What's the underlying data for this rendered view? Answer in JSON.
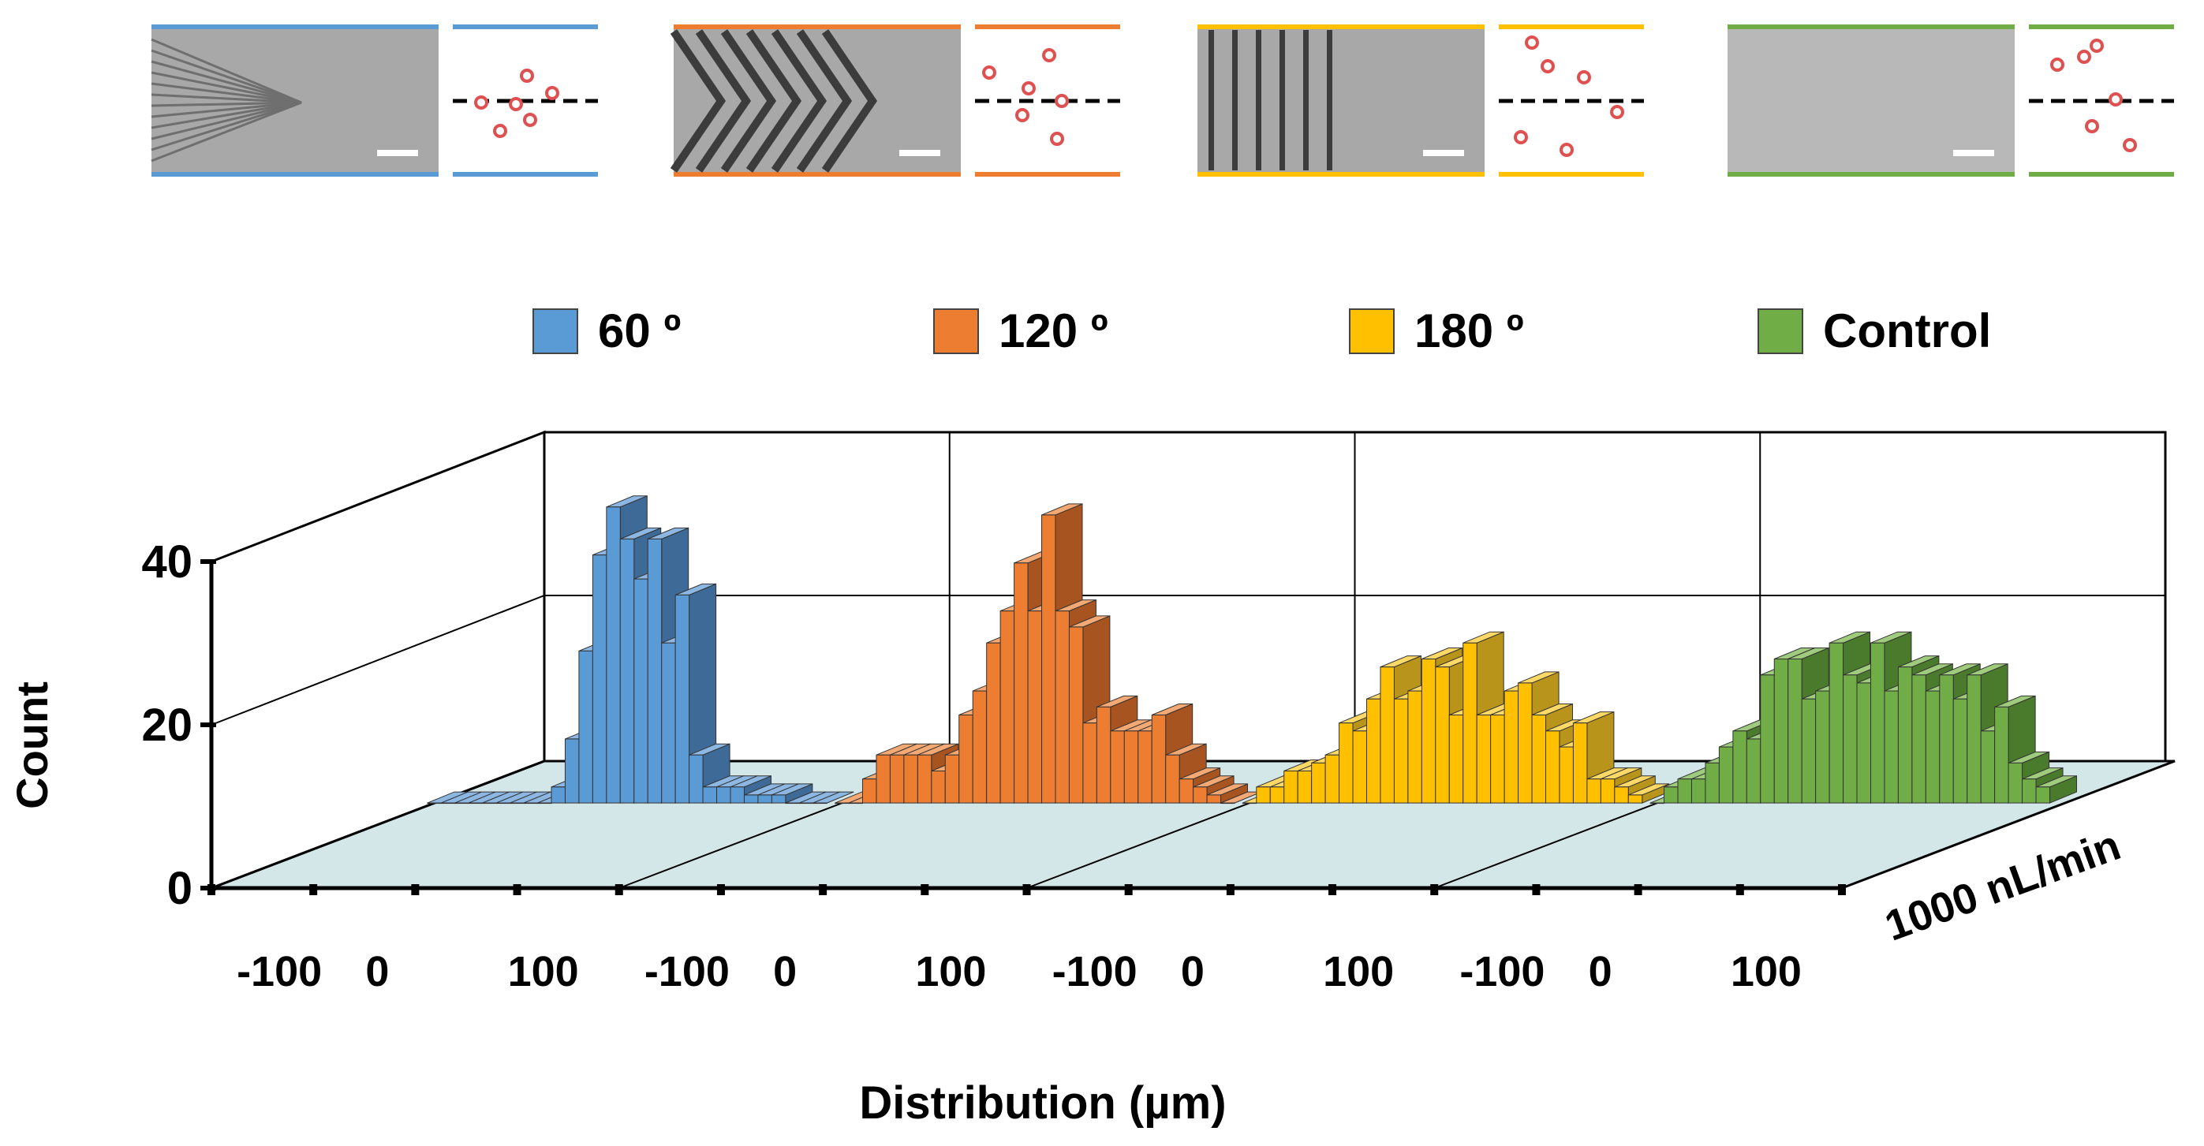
{
  "chart_data": {
    "type": "bar",
    "subtype": "3d-histogram-panels",
    "ylabel": "Count",
    "xlabel": "Distribution (µm)",
    "depth_label": "1000 nL/min",
    "yticks": [
      "0",
      "20",
      "40"
    ],
    "ylim": [
      0,
      40
    ],
    "xticks": [
      "-100",
      "0",
      "100"
    ],
    "xlim": [
      -150,
      150
    ],
    "bin_centers": [
      -140,
      -130,
      -120,
      -110,
      -100,
      -90,
      -80,
      -70,
      -60,
      -50,
      -40,
      -30,
      -20,
      -10,
      0,
      10,
      20,
      30,
      40,
      50,
      60,
      70,
      80,
      90,
      100,
      110,
      120,
      130,
      140
    ],
    "legend": [
      {
        "label": "60 º",
        "color": "#5b9bd5"
      },
      {
        "label": "120 º",
        "color": "#ed7d31"
      },
      {
        "label": "180 º",
        "color": "#ffc000"
      },
      {
        "label": "Control",
        "color": "#70ad47"
      }
    ],
    "series": [
      {
        "name": "60 º",
        "color": "#5b9bd5",
        "dark": "#3d6a96",
        "top": "#8db7e3",
        "values": [
          0,
          0,
          0,
          0,
          0,
          0,
          0,
          0,
          0,
          2,
          8,
          19,
          31,
          37,
          33,
          28,
          33,
          20,
          26,
          6,
          2,
          2,
          2,
          1,
          1,
          1,
          0,
          0,
          0
        ]
      },
      {
        "name": "120 º",
        "color": "#ed7d31",
        "dark": "#a85420",
        "top": "#f4a874",
        "values": [
          0,
          0,
          3,
          6,
          6,
          6,
          6,
          4,
          6,
          11,
          14,
          20,
          24,
          30,
          24,
          36,
          24,
          22,
          10,
          12,
          9,
          9,
          9,
          11,
          6,
          3,
          2,
          1,
          0
        ]
      },
      {
        "name": "180 º",
        "color": "#ffc000",
        "dark": "#b8941a",
        "top": "#ffd966",
        "values": [
          0,
          2,
          2,
          4,
          4,
          5,
          6,
          10,
          9,
          13,
          17,
          13,
          14,
          18,
          17,
          11,
          20,
          11,
          11,
          14,
          15,
          11,
          9,
          7,
          10,
          3,
          3,
          2,
          1
        ]
      },
      {
        "name": "Control",
        "color": "#70ad47",
        "dark": "#4a7a2c",
        "top": "#9fcb7c",
        "values": [
          0,
          2,
          3,
          3,
          5,
          7,
          9,
          8,
          16,
          18,
          18,
          13,
          14,
          20,
          16,
          15,
          20,
          14,
          17,
          16,
          14,
          16,
          13,
          16,
          9,
          12,
          5,
          3,
          2
        ]
      }
    ]
  }
}
